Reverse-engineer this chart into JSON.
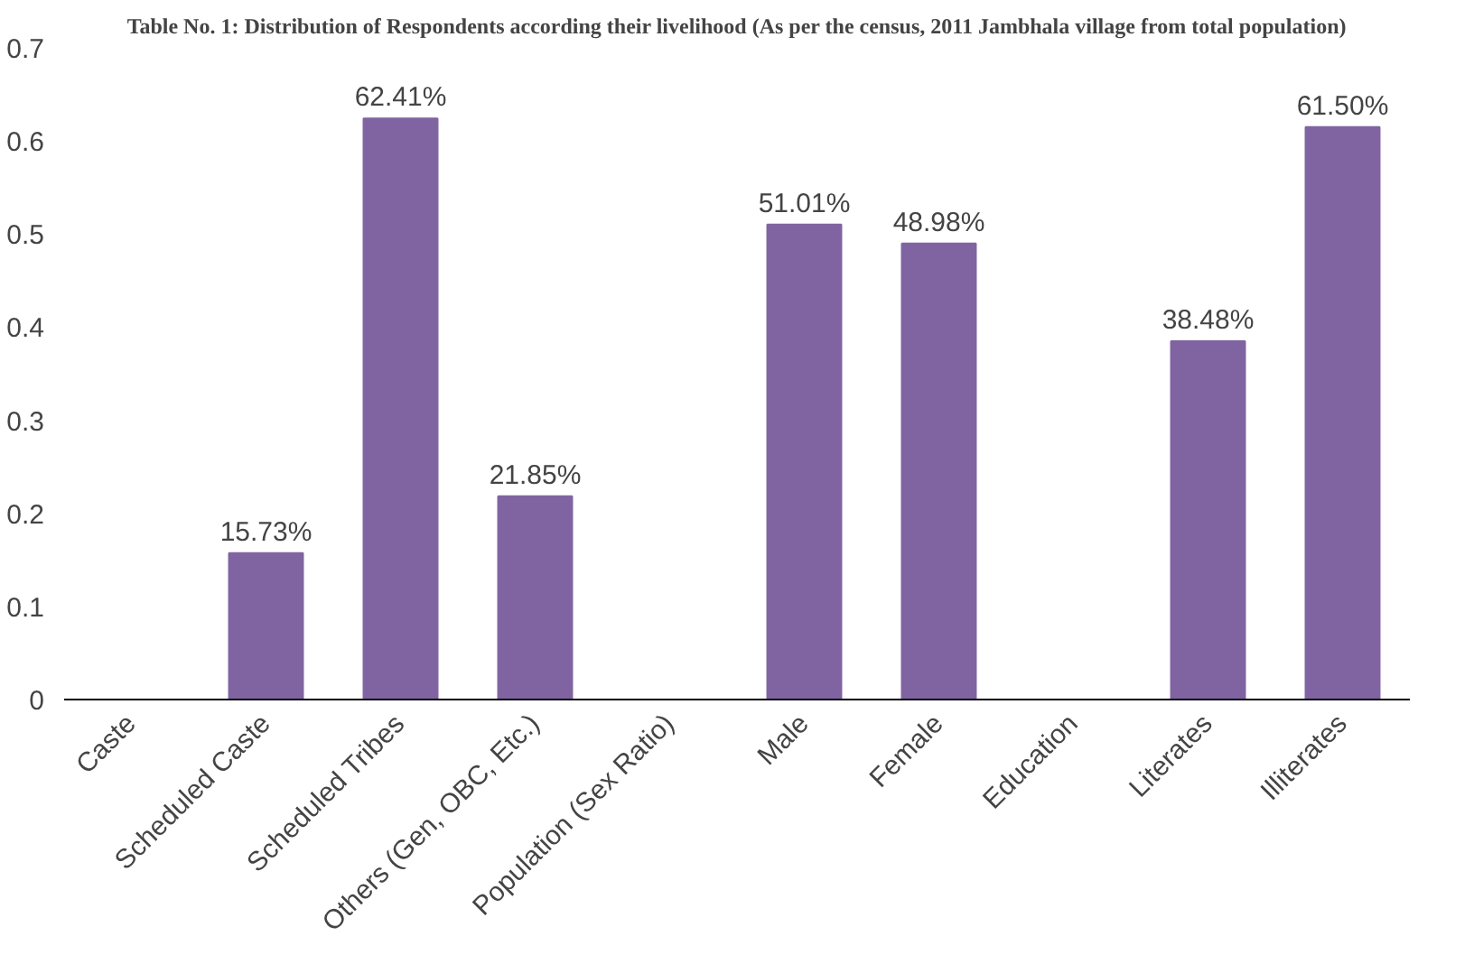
{
  "chart_data": {
    "type": "bar",
    "title": "Table No. 1: Distribution of Respondents according their livelihood (As per the census, 2011 Jambhala village from total population)",
    "categories": [
      "Caste",
      "Scheduled Caste",
      "Scheduled Tribes",
      "Others (Gen, OBC, Etc.)",
      "Population (Sex Ratio)",
      "Male",
      "Female",
      "Education",
      "Literates",
      "Illiterates"
    ],
    "values": [
      null,
      0.1573,
      0.6241,
      0.2185,
      null,
      0.5101,
      0.4898,
      null,
      0.3848,
      0.615
    ],
    "value_labels": [
      null,
      "15.73%",
      "62.41%",
      "21.85%",
      null,
      "51.01%",
      "48.98%",
      null,
      "38.48%",
      "61.50%"
    ],
    "color": "#8064a2",
    "ylim": [
      0,
      0.7
    ],
    "yticks": [
      0,
      0.1,
      0.2,
      0.3,
      0.4,
      0.5,
      0.6,
      0.7
    ],
    "grid": false
  }
}
